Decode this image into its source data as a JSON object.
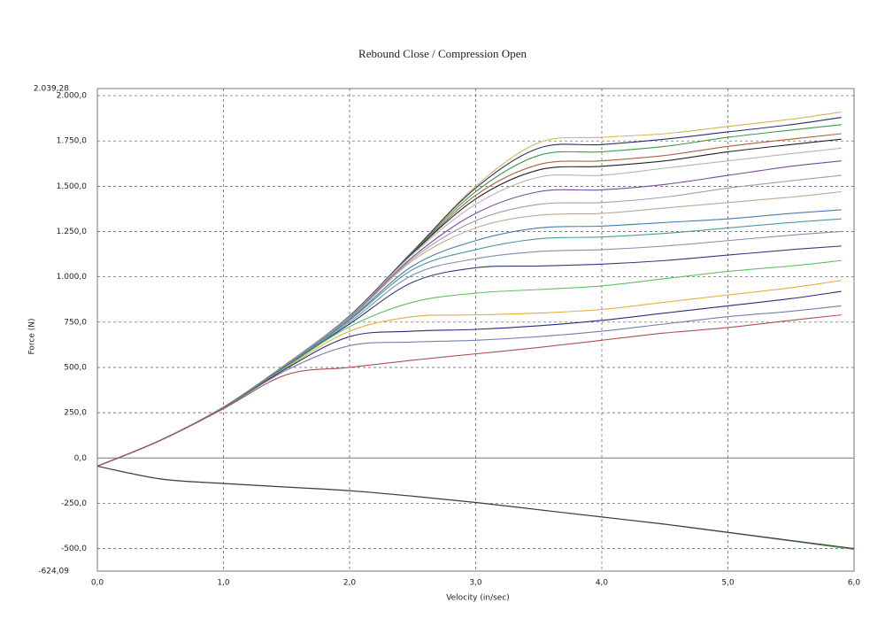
{
  "chart_data": {
    "type": "line",
    "title": "Rebound Close / Compression Open",
    "x_label": "Velocity (in/sec)",
    "y_label": "Force (N)",
    "xlim": [
      0,
      6
    ],
    "ylim": [
      -624.09,
      2039.28
    ],
    "xticks": [
      {
        "value": 0,
        "label": "0,0"
      },
      {
        "value": 1,
        "label": "1,0"
      },
      {
        "value": 2,
        "label": "2,0"
      },
      {
        "value": 3,
        "label": "3,0"
      },
      {
        "value": 4,
        "label": "4,0"
      },
      {
        "value": 5,
        "label": "5,0"
      },
      {
        "value": 6,
        "label": "6,0"
      }
    ],
    "yticks": [
      {
        "value": -624.09,
        "label": "-624,09"
      },
      {
        "value": -500,
        "label": "-500,0"
      },
      {
        "value": -250,
        "label": "-250,0"
      },
      {
        "value": 0,
        "label": "0,0"
      },
      {
        "value": 250,
        "label": "250,0"
      },
      {
        "value": 500,
        "label": "500,0"
      },
      {
        "value": 750,
        "label": "750,0"
      },
      {
        "value": 1000,
        "label": "1.000,0"
      },
      {
        "value": 1250,
        "label": "1.250,0"
      },
      {
        "value": 1500,
        "label": "1.500,0"
      },
      {
        "value": 1750,
        "label": "1.750,0"
      },
      {
        "value": 2000,
        "label": "2.000,0"
      },
      {
        "value": 2039.28,
        "label": "2.039,28"
      }
    ],
    "grid": true,
    "x": [
      0,
      0.5,
      1,
      1.5,
      2,
      2.5,
      3,
      3.5,
      4,
      4.5,
      5,
      5.5,
      5.9
    ],
    "series": [
      {
        "color": "#d4b45a",
        "values": [
          -45,
          98,
          280,
          520,
          785,
          1140,
          1500,
          1740,
          1770,
          1790,
          1830,
          1870,
          1910
        ]
      },
      {
        "color": "#2b2b6e",
        "values": [
          -45,
          98,
          280,
          520,
          785,
          1140,
          1490,
          1710,
          1730,
          1760,
          1800,
          1840,
          1880
        ]
      },
      {
        "color": "#3c9a4c",
        "values": [
          -45,
          98,
          280,
          520,
          783,
          1135,
          1470,
          1670,
          1690,
          1720,
          1770,
          1810,
          1840
        ]
      },
      {
        "color": "#b06040",
        "values": [
          -45,
          98,
          280,
          520,
          780,
          1130,
          1450,
          1620,
          1640,
          1670,
          1720,
          1760,
          1790
        ]
      },
      {
        "color": "#222222",
        "values": [
          -45,
          98,
          280,
          520,
          780,
          1130,
          1430,
          1590,
          1610,
          1640,
          1690,
          1730,
          1760
        ]
      },
      {
        "color": "#b8b0b8",
        "values": [
          -45,
          98,
          280,
          520,
          780,
          1125,
          1400,
          1550,
          1560,
          1600,
          1640,
          1680,
          1710
        ]
      },
      {
        "color": "#7a4a9a",
        "values": [
          -45,
          98,
          280,
          518,
          775,
          1110,
          1350,
          1470,
          1480,
          1510,
          1560,
          1610,
          1640
        ]
      },
      {
        "color": "#a0a0a0",
        "values": [
          -45,
          98,
          280,
          518,
          772,
          1100,
          1310,
          1400,
          1410,
          1440,
          1490,
          1530,
          1560
        ]
      },
      {
        "color": "#c0a890",
        "values": [
          -45,
          98,
          280,
          517,
          770,
          1090,
          1270,
          1340,
          1350,
          1380,
          1410,
          1440,
          1470
        ]
      },
      {
        "color": "#4a7ab0",
        "values": [
          -45,
          98,
          280,
          515,
          765,
          1060,
          1200,
          1270,
          1280,
          1300,
          1320,
          1350,
          1370
        ]
      },
      {
        "color": "#4a9aa0",
        "values": [
          -45,
          98,
          280,
          513,
          760,
          1040,
          1150,
          1210,
          1220,
          1240,
          1270,
          1300,
          1320
        ]
      },
      {
        "color": "#8090a8",
        "values": [
          -45,
          98,
          280,
          510,
          750,
          1010,
          1100,
          1140,
          1150,
          1170,
          1200,
          1230,
          1250
        ]
      },
      {
        "color": "#303a7a",
        "values": [
          -45,
          98,
          280,
          508,
          740,
          970,
          1050,
          1060,
          1070,
          1090,
          1120,
          1150,
          1170
        ]
      },
      {
        "color": "#60c060",
        "values": [
          -45,
          98,
          278,
          505,
          725,
          860,
          910,
          930,
          950,
          990,
          1030,
          1060,
          1090
        ]
      },
      {
        "color": "#e0b040",
        "values": [
          -45,
          98,
          277,
          500,
          700,
          780,
          790,
          800,
          820,
          860,
          900,
          940,
          980
        ]
      },
      {
        "color": "#2a2a80",
        "values": [
          -45,
          98,
          276,
          495,
          670,
          700,
          710,
          730,
          760,
          800,
          840,
          880,
          920
        ]
      },
      {
        "color": "#7080b0",
        "values": [
          -45,
          98,
          275,
          485,
          620,
          640,
          650,
          670,
          700,
          740,
          780,
          810,
          840
        ]
      },
      {
        "color": "#b05050",
        "values": [
          -45,
          97,
          272,
          460,
          500,
          540,
          575,
          610,
          650,
          690,
          720,
          760,
          790
        ]
      },
      {
        "color": "#60b060",
        "x": [
          0,
          0.5,
          1,
          1.5,
          2,
          2.5,
          3,
          3.5,
          4,
          4.5,
          5,
          5.5,
          6
        ],
        "values": [
          -45,
          -116,
          -141,
          -161,
          -181,
          -211,
          -246,
          -286,
          -326,
          -366,
          -412,
          -458,
          -505
        ]
      },
      {
        "color": "#3a3a3a",
        "x": [
          0,
          0.5,
          1,
          1.5,
          2,
          2.5,
          3,
          3.5,
          4,
          4.5,
          5,
          5.5,
          6
        ],
        "values": [
          -45,
          -115,
          -140,
          -160,
          -180,
          -210,
          -245,
          -285,
          -325,
          -365,
          -410,
          -455,
          -500
        ]
      }
    ]
  }
}
